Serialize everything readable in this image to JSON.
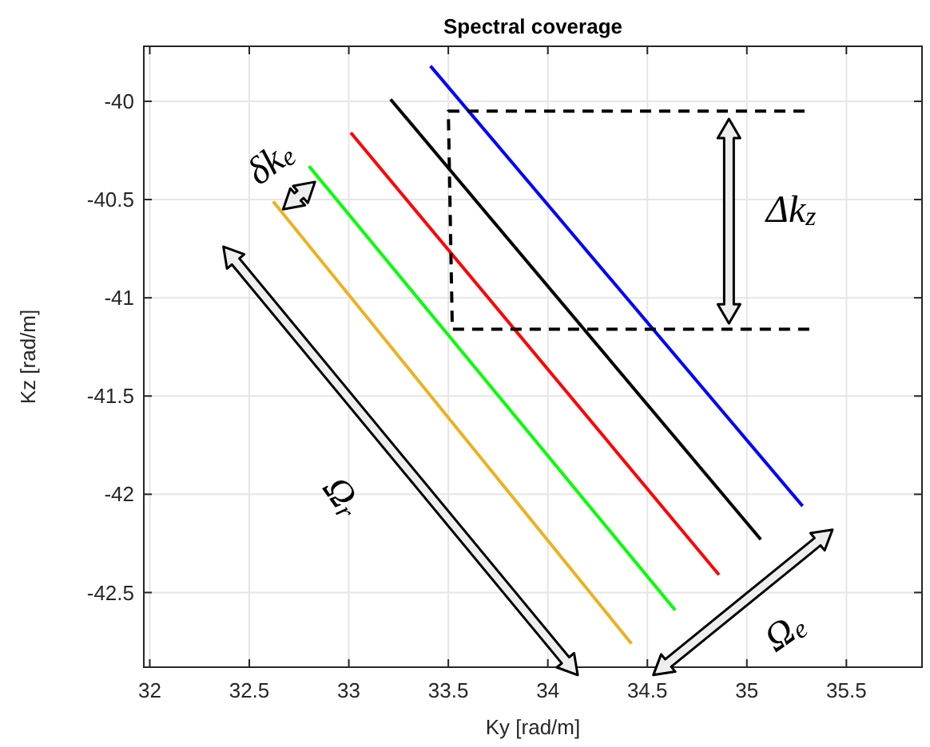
{
  "chart_data": {
    "type": "line",
    "title": "Spectral coverage",
    "xlabel": "Ky [rad/m]",
    "ylabel": "Kz [rad/m]",
    "xlim": [
      31.97,
      35.88
    ],
    "ylim": [
      -42.88,
      -39.72
    ],
    "xticks": [
      32,
      32.5,
      33,
      33.5,
      34,
      34.5,
      35,
      35.5
    ],
    "yticks": [
      -42.5,
      -42,
      -41.5,
      -41,
      -40.5,
      -40
    ],
    "grid": true,
    "series": [
      {
        "color": "#0000ff",
        "x": [
          33.41,
          35.28
        ],
        "values": [
          -39.82,
          -42.06
        ]
      },
      {
        "color": "#000000",
        "x": [
          33.21,
          35.07
        ],
        "values": [
          -39.99,
          -42.23
        ]
      },
      {
        "color": "#ff0000",
        "x": [
          33.01,
          34.86
        ],
        "values": [
          -40.16,
          -42.41
        ]
      },
      {
        "color": "#00ff00",
        "x": [
          32.8,
          34.64
        ],
        "values": [
          -40.33,
          -42.59
        ]
      },
      {
        "color": "#edb120",
        "x": [
          32.62,
          34.42
        ],
        "values": [
          -40.51,
          -42.76
        ]
      },
      {
        "color": "#000000",
        "line_style": "dashed",
        "x": [
          35.29,
          33.5,
          33.52,
          35.34
        ],
        "values": [
          -40.05,
          -40.05,
          -41.16,
          -41.16
        ]
      }
    ],
    "annotations": [
      "δk$_{e}$",
      "Δk$_{z}$",
      "Ω$_{r}$",
      "Ω$_{e}$"
    ]
  }
}
